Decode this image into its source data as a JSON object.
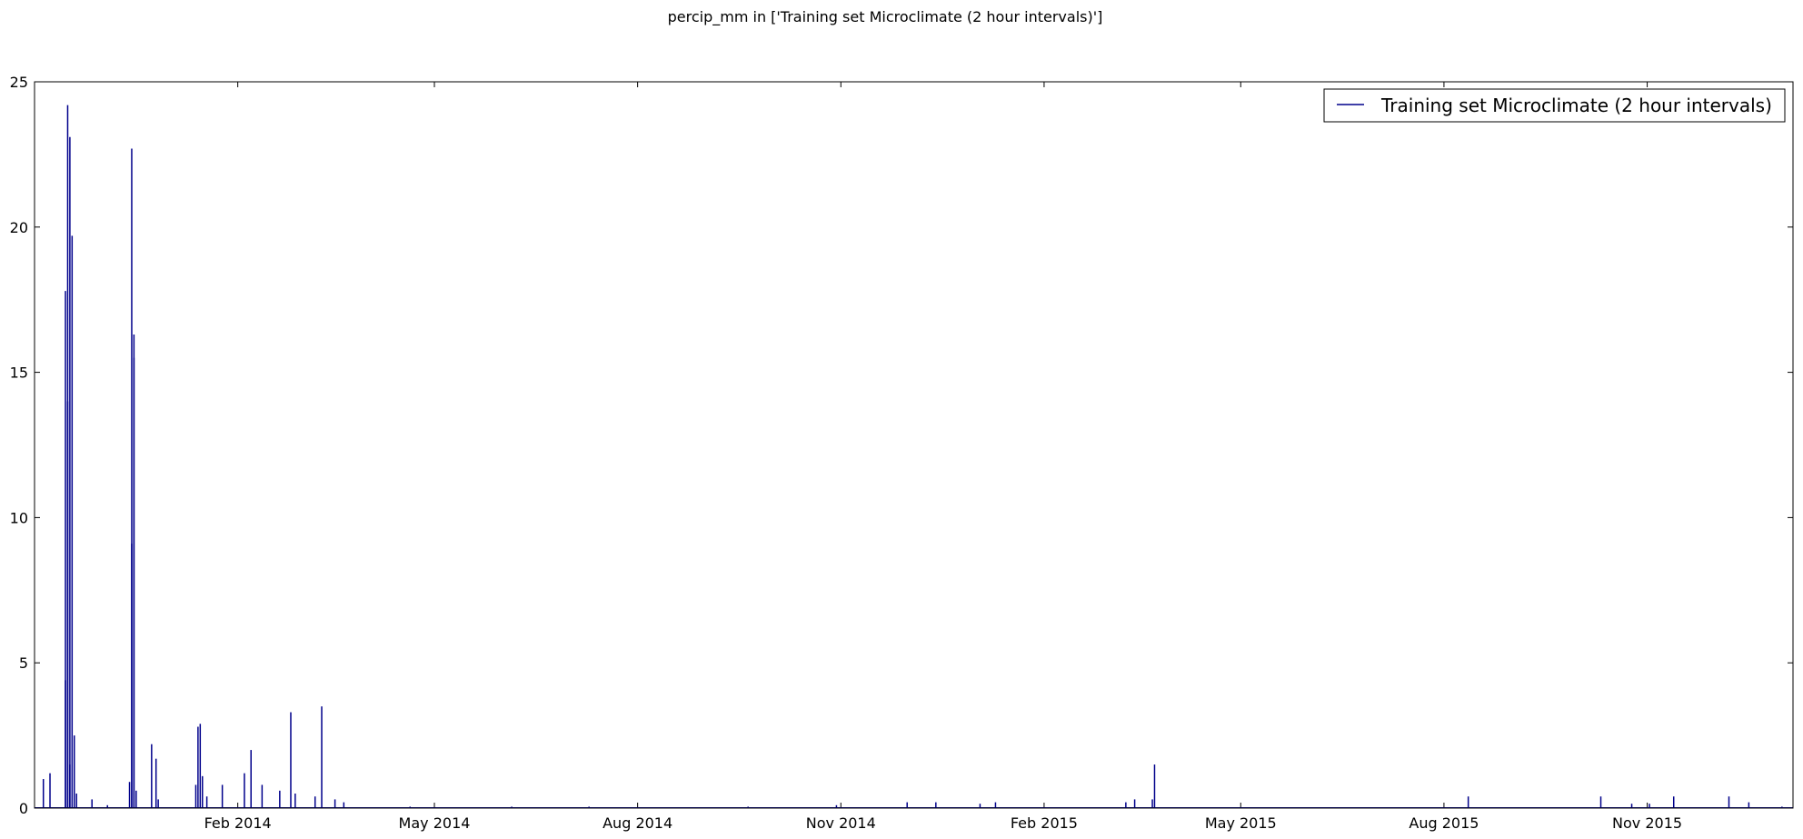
{
  "chart_data": {
    "type": "line",
    "title": "percip_mm in ['Training set Microclimate (2 hour intervals)']",
    "xlabel": "",
    "ylabel": "",
    "x_range": [
      "2013-11-01",
      "2016-01-06"
    ],
    "ylim": [
      0,
      25
    ],
    "y_ticks": [
      0,
      5,
      10,
      15,
      20,
      25
    ],
    "x_ticks": [
      {
        "date": "2014-02-01",
        "label": "Feb 2014"
      },
      {
        "date": "2014-05-01",
        "label": "May 2014"
      },
      {
        "date": "2014-08-01",
        "label": "Aug 2014"
      },
      {
        "date": "2014-11-01",
        "label": "Nov 2014"
      },
      {
        "date": "2015-02-01",
        "label": "Feb 2015"
      },
      {
        "date": "2015-05-01",
        "label": "May 2015"
      },
      {
        "date": "2015-08-01",
        "label": "Aug 2015"
      },
      {
        "date": "2015-11-01",
        "label": "Nov 2015"
      }
    ],
    "grid": false,
    "legend_position": "top-right",
    "colors": {
      "line": "#00008b",
      "axes": "#000000"
    },
    "series": [
      {
        "name": "Training set Microclimate (2 hour intervals)",
        "points": [
          [
            "2013-11-05",
            1.0
          ],
          [
            "2013-11-08",
            1.2
          ],
          [
            "2013-11-15",
            4.4
          ],
          [
            "2013-11-15",
            17.8
          ],
          [
            "2013-11-16",
            24.2
          ],
          [
            "2013-11-16",
            14.0
          ],
          [
            "2013-11-17",
            23.1
          ],
          [
            "2013-11-17",
            1.5
          ],
          [
            "2013-11-18",
            19.7
          ],
          [
            "2013-11-19",
            2.5
          ],
          [
            "2013-11-20",
            0.5
          ],
          [
            "2013-11-27",
            0.3
          ],
          [
            "2013-12-04",
            0.1
          ],
          [
            "2013-12-14",
            0.9
          ],
          [
            "2013-12-15",
            9.1
          ],
          [
            "2013-12-15",
            22.7
          ],
          [
            "2013-12-16",
            16.3
          ],
          [
            "2013-12-16",
            15.5
          ],
          [
            "2013-12-17",
            0.6
          ],
          [
            "2013-12-24",
            2.2
          ],
          [
            "2013-12-26",
            1.7
          ],
          [
            "2013-12-27",
            0.3
          ],
          [
            "2014-01-13",
            0.8
          ],
          [
            "2014-01-14",
            2.8
          ],
          [
            "2014-01-15",
            2.9
          ],
          [
            "2014-01-16",
            1.1
          ],
          [
            "2014-01-18",
            0.4
          ],
          [
            "2014-01-25",
            0.8
          ],
          [
            "2014-02-04",
            1.2
          ],
          [
            "2014-02-07",
            2.0
          ],
          [
            "2014-02-12",
            0.8
          ],
          [
            "2014-02-20",
            0.6
          ],
          [
            "2014-02-25",
            3.3
          ],
          [
            "2014-02-27",
            0.5
          ],
          [
            "2014-03-08",
            0.4
          ],
          [
            "2014-03-11",
            3.5
          ],
          [
            "2014-03-17",
            0.3
          ],
          [
            "2014-03-21",
            0.2
          ],
          [
            "2014-04-20",
            0.05
          ],
          [
            "2014-06-05",
            0.05
          ],
          [
            "2014-07-10",
            0.05
          ],
          [
            "2014-09-20",
            0.05
          ],
          [
            "2014-10-30",
            0.1
          ],
          [
            "2014-12-01",
            0.2
          ],
          [
            "2014-12-14",
            0.2
          ],
          [
            "2015-01-03",
            0.15
          ],
          [
            "2015-01-10",
            0.2
          ],
          [
            "2015-03-10",
            0.2
          ],
          [
            "2015-03-14",
            0.3
          ],
          [
            "2015-03-22",
            0.3
          ],
          [
            "2015-03-23",
            1.5
          ],
          [
            "2015-08-12",
            0.4
          ],
          [
            "2015-10-11",
            0.4
          ],
          [
            "2015-10-25",
            0.15
          ],
          [
            "2015-11-02",
            0.15
          ],
          [
            "2015-11-13",
            0.4
          ],
          [
            "2015-12-08",
            0.4
          ],
          [
            "2015-12-17",
            0.2
          ],
          [
            "2016-01-01",
            0.05
          ]
        ]
      }
    ]
  }
}
